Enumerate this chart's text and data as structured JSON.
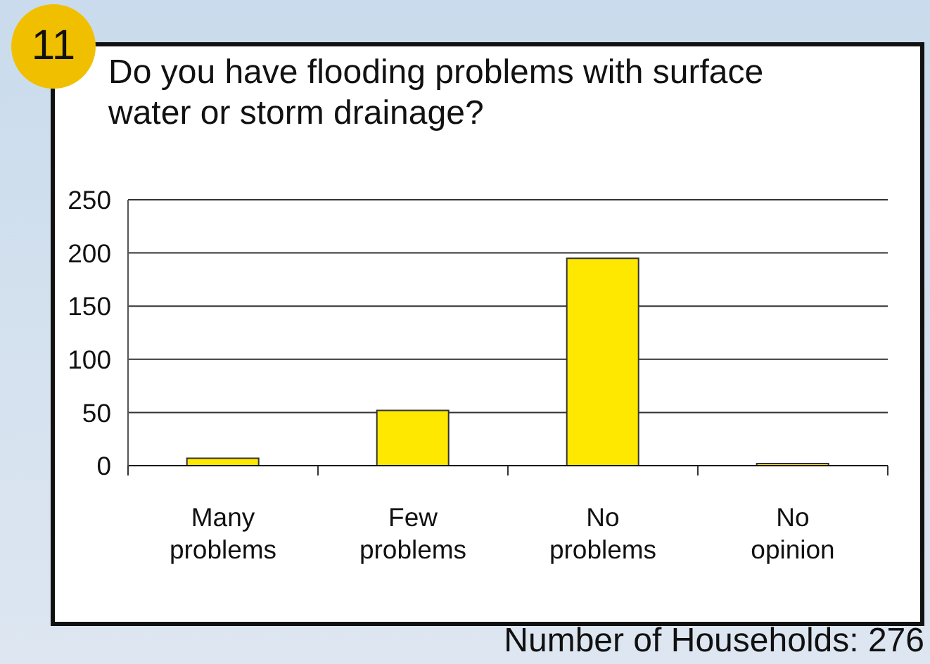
{
  "chart_data": {
    "type": "bar",
    "title": "Do you have flooding problems with surface water or storm drainage?",
    "categories": [
      "Many problems",
      "Few problems",
      "No problems",
      "No opinion"
    ],
    "values": [
      7,
      52,
      195,
      2
    ],
    "color": "#ffe800",
    "ylim": [
      0,
      250
    ],
    "yticks": [
      0,
      50,
      100,
      150,
      200,
      250
    ],
    "grid": "y",
    "annotations": [
      "11",
      "Number of Households: 276"
    ]
  }
}
